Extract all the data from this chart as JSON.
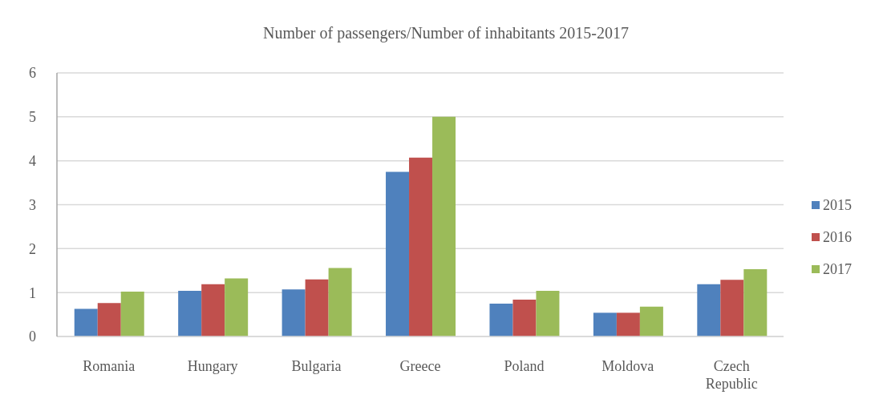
{
  "chart_data": {
    "type": "bar",
    "title": "Number of passengers/Number of inhabitants 2015-2017",
    "categories": [
      "Romania",
      "Hungary",
      "Bulgaria",
      "Greece",
      "Poland",
      "Moldova",
      "Czech Republic"
    ],
    "series": [
      {
        "name": "2015",
        "color": "#4f81bd",
        "values": [
          0.63,
          1.04,
          1.07,
          3.75,
          0.75,
          0.54,
          1.19
        ]
      },
      {
        "name": "2016",
        "color": "#c0504d",
        "values": [
          0.76,
          1.19,
          1.3,
          4.07,
          0.84,
          0.54,
          1.29
        ]
      },
      {
        "name": "2017",
        "color": "#9bbb59",
        "values": [
          1.02,
          1.32,
          1.56,
          5.0,
          1.04,
          0.68,
          1.53
        ]
      }
    ],
    "ylim": [
      0,
      6
    ],
    "yticks": [
      0,
      1,
      2,
      3,
      4,
      5,
      6
    ],
    "grid": "y",
    "legend": "right"
  }
}
